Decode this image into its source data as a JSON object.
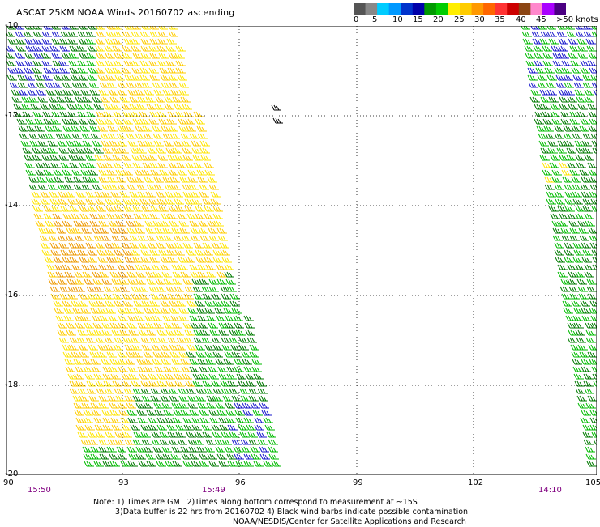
{
  "title": "ASCAT 25KM NOAA Winds 20160702 ascending",
  "legend": {
    "colors": [
      "#555555",
      "#888888",
      "#00ccff",
      "#0099ff",
      "#0033cc",
      "#0000aa",
      "#009900",
      "#00cc00",
      "#ffee00",
      "#ffcc00",
      "#ff9900",
      "#ff6600",
      "#ff3333",
      "#cc0000",
      "#8b4513",
      "#ff88cc",
      "#aa00ff",
      "#4b0082"
    ],
    "labels": [
      "0",
      "5",
      "10",
      "15",
      "20",
      "25",
      "30",
      "35",
      "40",
      "45",
      ">50 knots"
    ]
  },
  "axes": {
    "lat_labels": [
      "-10",
      "-12",
      "-14",
      "-16",
      "-18",
      "-20"
    ],
    "lon_labels": [
      "90",
      "93",
      "96",
      "99",
      "102",
      "105"
    ]
  },
  "times": [
    "15:50",
    "15:49",
    "14:10"
  ],
  "notes": {
    "line1": "Note: 1) Times are GMT 2)Times along bottom correspond to measurement at ~15S",
    "line2": "3)Data buffer is 22 hrs from 20160702 4) Black wind barbs indicate possible contamination",
    "line3": "NOAA/NESDIS/Center for Satellite Applications and Research"
  }
}
